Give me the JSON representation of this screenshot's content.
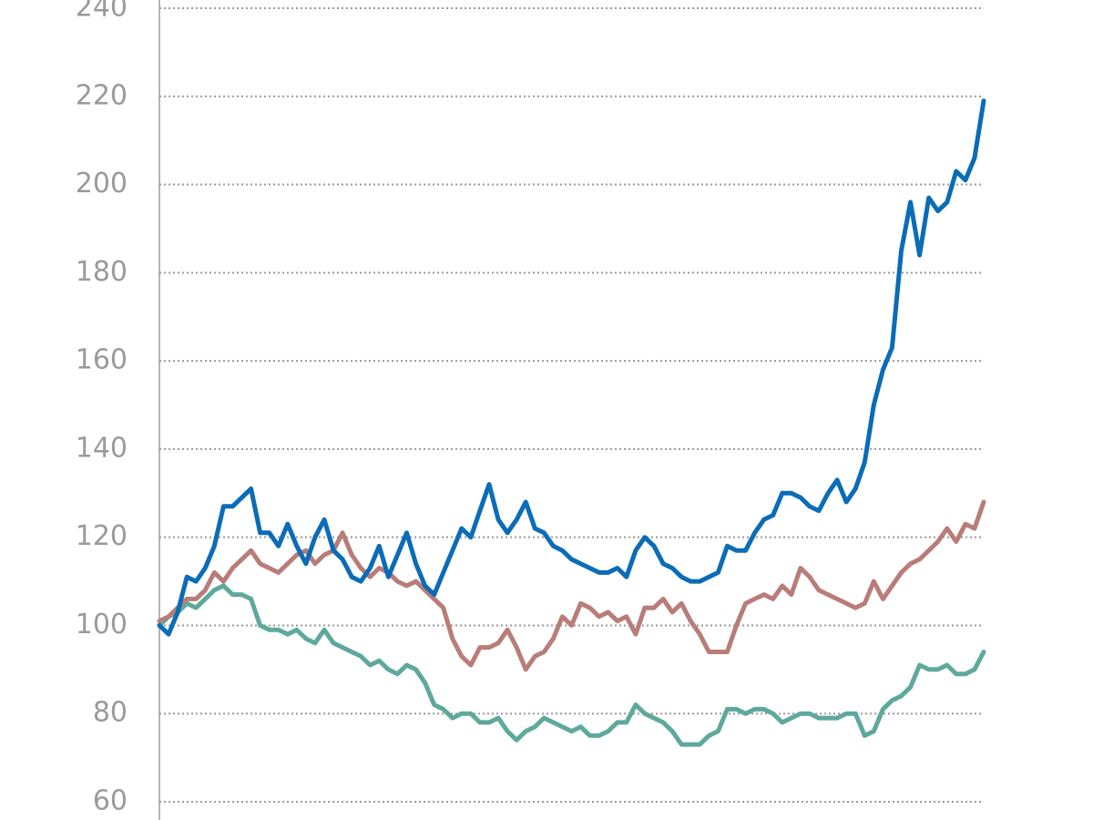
{
  "chart_data": {
    "type": "line",
    "ylim": [
      60,
      240
    ],
    "yticks": [
      60,
      80,
      100,
      120,
      140,
      160,
      180,
      200,
      220,
      240
    ],
    "grid": true,
    "series": [
      {
        "color": "#0b6cb7",
        "values": [
          100,
          98,
          103,
          111,
          110,
          113,
          118,
          127,
          127,
          129,
          131,
          121,
          121,
          118,
          123,
          118,
          114,
          120,
          124,
          117,
          115,
          111,
          110,
          113,
          118,
          111,
          116,
          121,
          114,
          109,
          107,
          112,
          117,
          122,
          120,
          126,
          132,
          124,
          121,
          124,
          128,
          122,
          121,
          118,
          117,
          115,
          114,
          113,
          112,
          112,
          113,
          111,
          117,
          120,
          118,
          114,
          113,
          111,
          110,
          110,
          111,
          112,
          118,
          117,
          117,
          121,
          124,
          125,
          130,
          130,
          129,
          127,
          126,
          130,
          133,
          128,
          131,
          137,
          150,
          158,
          163,
          185,
          196,
          184,
          197,
          194,
          196,
          203,
          201,
          206,
          219
        ]
      },
      {
        "color": "#b97d79",
        "values": [
          101,
          102,
          104,
          106,
          106,
          108,
          112,
          110,
          113,
          115,
          117,
          114,
          113,
          112,
          114,
          116,
          117,
          114,
          116,
          117,
          121,
          116,
          113,
          111,
          113,
          112,
          110,
          109,
          110,
          108,
          106,
          104,
          97,
          93,
          91,
          95,
          95,
          96,
          99,
          95,
          90,
          93,
          94,
          97,
          102,
          100,
          105,
          104,
          102,
          103,
          101,
          102,
          98,
          104,
          104,
          106,
          103,
          105,
          101,
          98,
          94,
          94,
          94,
          100,
          105,
          106,
          107,
          106,
          109,
          107,
          113,
          111,
          108,
          107,
          106,
          105,
          104,
          105,
          110,
          106,
          109,
          112,
          114,
          115,
          117,
          119,
          122,
          119,
          123,
          122,
          128
        ]
      },
      {
        "color": "#5ea99c",
        "values": [
          100,
          102,
          103,
          105,
          104,
          106,
          108,
          109,
          107,
          107,
          106,
          100,
          99,
          99,
          98,
          99,
          97,
          96,
          99,
          96,
          95,
          94,
          93,
          91,
          92,
          90,
          89,
          91,
          90,
          87,
          82,
          81,
          79,
          80,
          80,
          78,
          78,
          79,
          76,
          74,
          76,
          77,
          79,
          78,
          77,
          76,
          77,
          75,
          75,
          76,
          78,
          78,
          82,
          80,
          79,
          78,
          76,
          73,
          73,
          73,
          75,
          76,
          81,
          81,
          80,
          81,
          81,
          80,
          78,
          79,
          80,
          80,
          79,
          79,
          79,
          80,
          80,
          75,
          76,
          81,
          83,
          84,
          86,
          91,
          90,
          90,
          91,
          89,
          89,
          90,
          94
        ]
      }
    ]
  }
}
